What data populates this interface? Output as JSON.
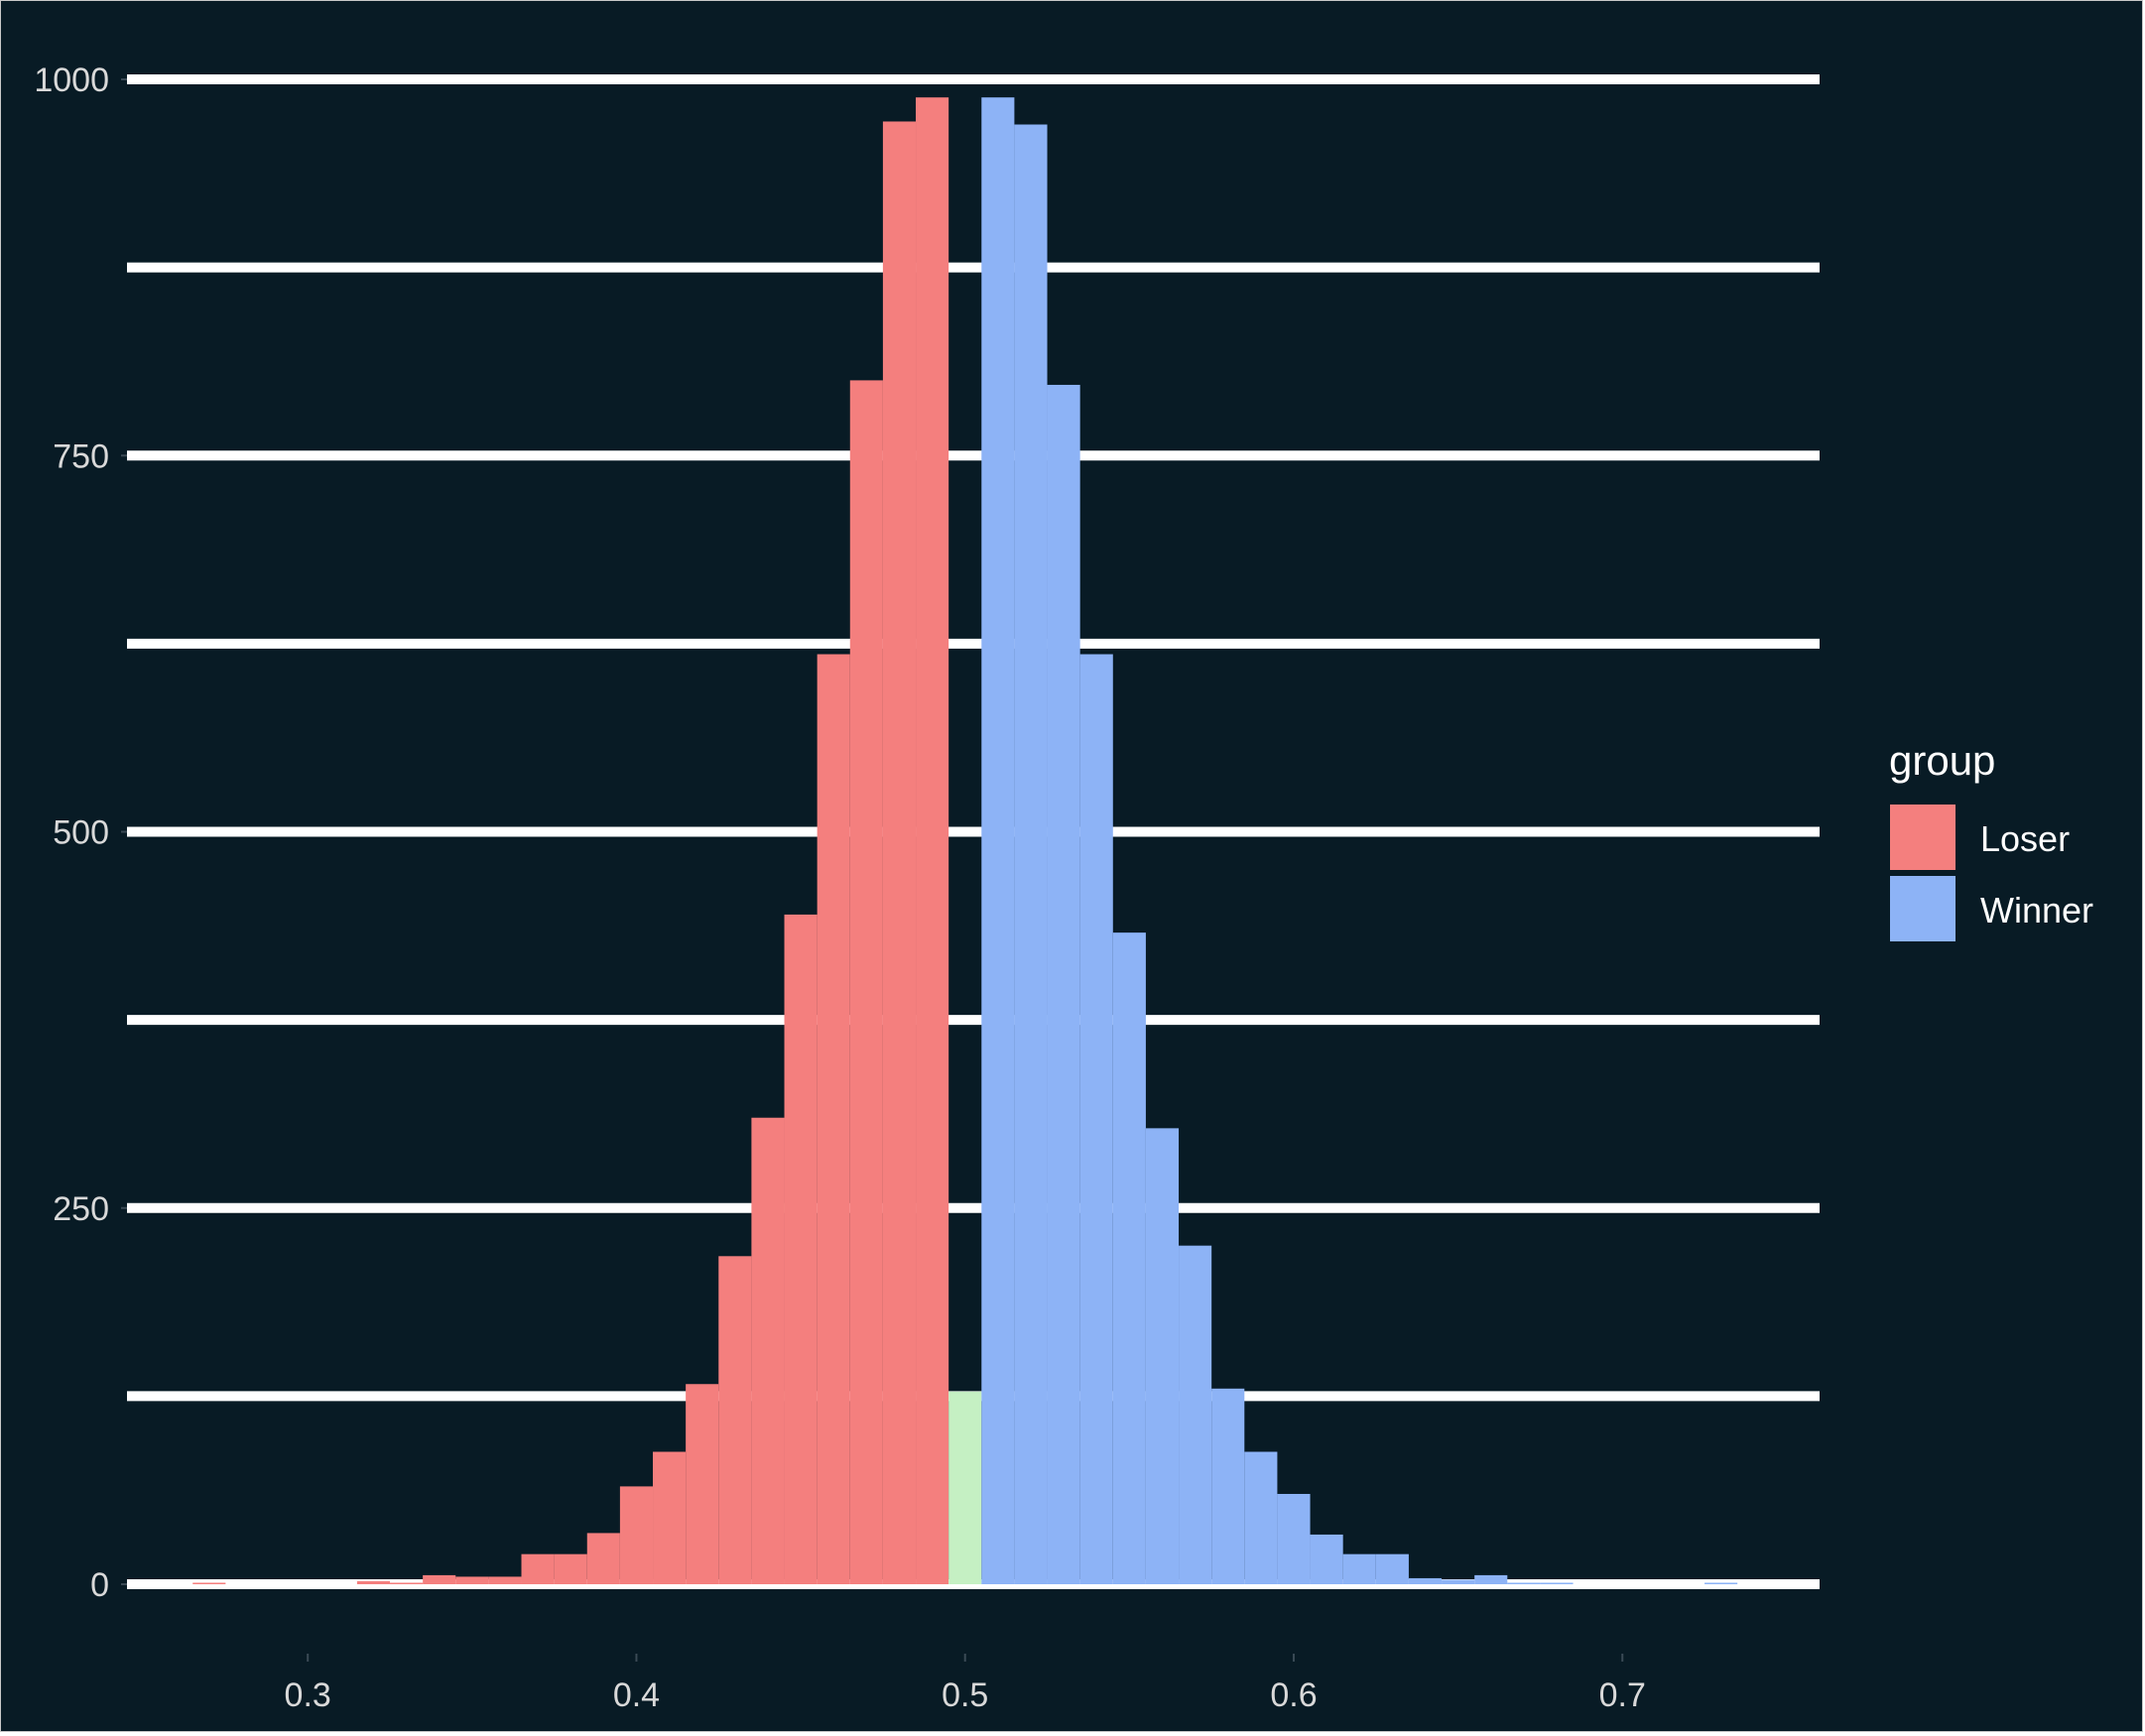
{
  "chart_data": {
    "type": "bar",
    "subtype": "histogram",
    "title": "",
    "xlabel": "",
    "ylabel": "",
    "xlim": [
      0.245,
      0.76
    ],
    "ylim": [
      -50,
      1050
    ],
    "x_ticks": [
      0.3,
      0.4,
      0.5,
      0.6,
      0.7
    ],
    "x_tick_labels": [
      "0.3",
      "0.4",
      "0.5",
      "0.6",
      "0.7"
    ],
    "y_ticks": [
      0,
      250,
      500,
      750,
      1000
    ],
    "y_tick_labels": [
      "0",
      "250",
      "500",
      "750",
      "1000"
    ],
    "y_gridlines": [
      0,
      125,
      250,
      375,
      500,
      625,
      750,
      875,
      1000
    ],
    "grid": "horizontal",
    "bin_width": 0.01,
    "background": "#081b25",
    "gridline_color": "#ffffff",
    "legend": {
      "title": "group",
      "position": "right",
      "entries": [
        {
          "label": "Loser",
          "color": "#f47f7e"
        },
        {
          "label": "Winner",
          "color": "#8db3f6"
        }
      ]
    },
    "series": [
      {
        "name": "Loser",
        "color": "#f47f7e",
        "x": [
          0.27,
          0.32,
          0.33,
          0.34,
          0.35,
          0.36,
          0.37,
          0.38,
          0.39,
          0.4,
          0.41,
          0.42,
          0.43,
          0.44,
          0.45,
          0.46,
          0.47,
          0.48,
          0.49
        ],
        "values": [
          1,
          2,
          1,
          6,
          5,
          5,
          20,
          20,
          34,
          65,
          88,
          133,
          218,
          310,
          445,
          618,
          800,
          972,
          988
        ]
      },
      {
        "name": "",
        "color": "#c5f0c3",
        "x": [
          0.5
        ],
        "values": [
          128
        ]
      },
      {
        "name": "Winner",
        "color": "#8db3f6",
        "x": [
          0.51,
          0.52,
          0.53,
          0.54,
          0.55,
          0.56,
          0.57,
          0.58,
          0.59,
          0.6,
          0.61,
          0.62,
          0.63,
          0.64,
          0.65,
          0.66,
          0.67,
          0.68,
          0.73
        ],
        "values": [
          988,
          970,
          797,
          618,
          433,
          303,
          225,
          130,
          88,
          60,
          33,
          20,
          20,
          4,
          3,
          6,
          1,
          1,
          1
        ]
      }
    ]
  }
}
